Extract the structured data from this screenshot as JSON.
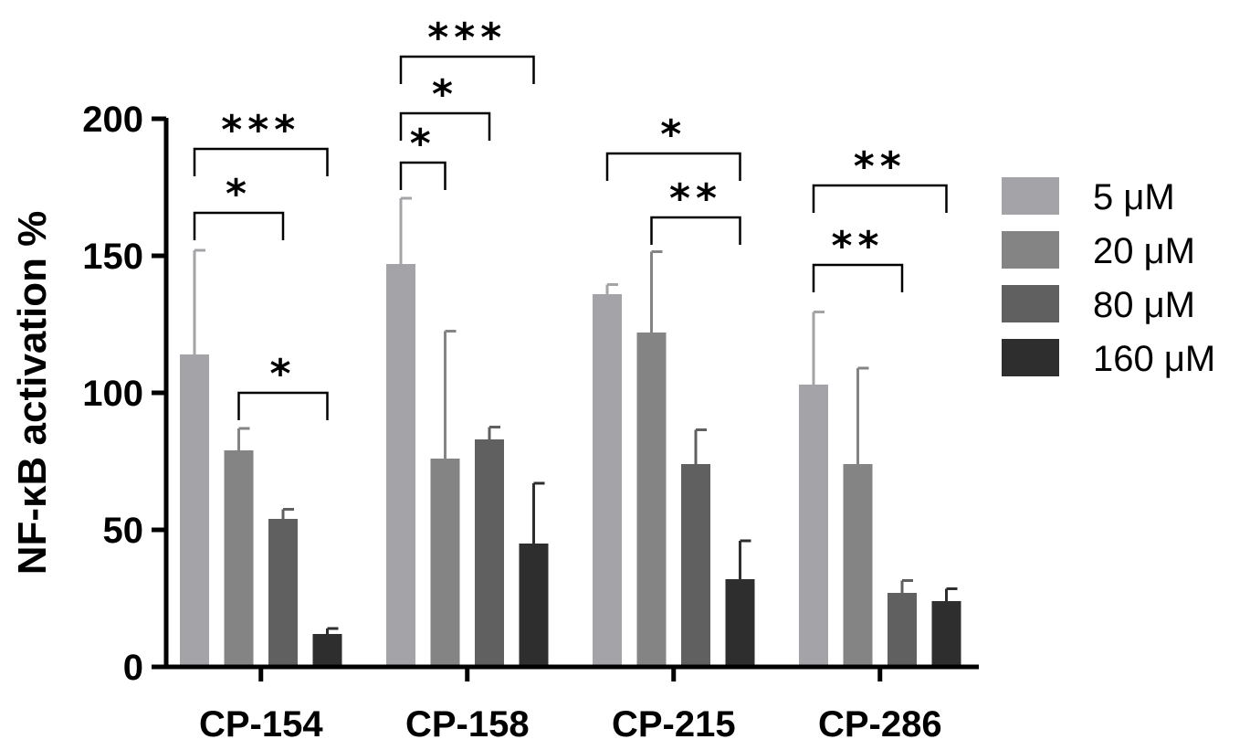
{
  "chart_data": {
    "type": "bar",
    "title": "",
    "xlabel": "",
    "ylabel": "NF-κB activation %",
    "ylim": [
      0,
      200
    ],
    "yticks": [
      "0",
      "50",
      "100",
      "150",
      "200"
    ],
    "categories": [
      "CP-154",
      "CP-158",
      "CP-215",
      "CP-286"
    ],
    "legend_position": "right",
    "series": [
      {
        "name": "5 μM",
        "color": "#A4A4A8",
        "values": [
          114,
          147,
          136,
          103
        ],
        "errors": [
          38,
          24,
          3.5,
          26.5
        ]
      },
      {
        "name": "20 μM",
        "color": "#848484",
        "values": [
          79,
          76,
          122,
          74
        ],
        "errors": [
          8,
          46.5,
          29.5,
          35
        ]
      },
      {
        "name": "80 μM",
        "color": "#606060",
        "values": [
          54,
          83,
          74,
          27
        ],
        "errors": [
          3.5,
          4.5,
          12.5,
          4.5
        ]
      },
      {
        "name": "160 μM",
        "color": "#2E2E2E",
        "values": [
          12,
          45,
          32,
          24
        ],
        "errors": [
          2,
          22,
          14,
          4.5
        ]
      }
    ],
    "significance": [
      {
        "category": "CP-154",
        "from_series": 0,
        "to_series": 3,
        "label": "***",
        "level": 3
      },
      {
        "category": "CP-154",
        "from_series": 0,
        "to_series": 2,
        "label": "*",
        "level": 2
      },
      {
        "category": "CP-154",
        "from_series": 1,
        "to_series": 3,
        "label": "*",
        "level": 1
      },
      {
        "category": "CP-158",
        "from_series": 0,
        "to_series": 3,
        "label": "***",
        "level": 3
      },
      {
        "category": "CP-158",
        "from_series": 0,
        "to_series": 2,
        "label": "*",
        "level": 2
      },
      {
        "category": "CP-158",
        "from_series": 0,
        "to_series": 1,
        "label": "*",
        "level": 1
      },
      {
        "category": "CP-215",
        "from_series": 0,
        "to_series": 3,
        "label": "*",
        "level": 2
      },
      {
        "category": "CP-215",
        "from_series": 1,
        "to_series": 3,
        "label": "**",
        "level": 1
      },
      {
        "category": "CP-286",
        "from_series": 0,
        "to_series": 3,
        "label": "**",
        "level": 2
      },
      {
        "category": "CP-286",
        "from_series": 0,
        "to_series": 2,
        "label": "**",
        "level": 1
      }
    ]
  }
}
